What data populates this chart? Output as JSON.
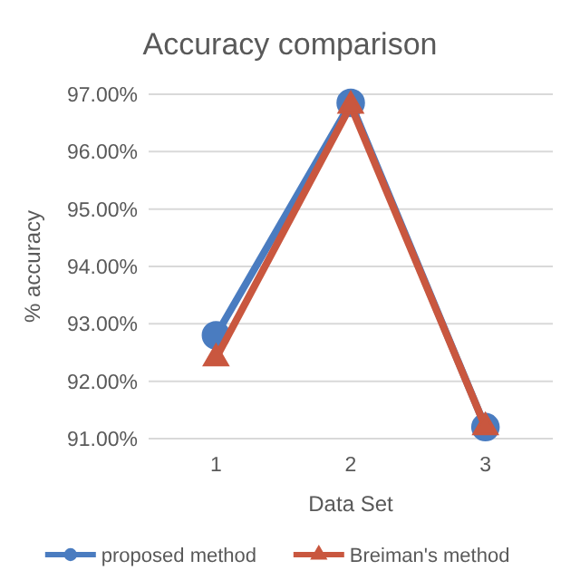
{
  "chart_data": {
    "type": "line",
    "title": "Accuracy comparison",
    "xlabel": "Data Set",
    "ylabel": "% accuracy",
    "categories": [
      "1",
      "2",
      "3"
    ],
    "series": [
      {
        "name": "proposed method",
        "color": "#4a7cc0",
        "marker": "circle",
        "values": [
          92.8,
          96.85,
          91.2
        ]
      },
      {
        "name": "Breiman's method",
        "color": "#c9573f",
        "marker": "triangle",
        "values": [
          92.4,
          96.8,
          91.2
        ]
      }
    ],
    "ylim": [
      91,
      97
    ],
    "yticks": [
      {
        "value": 91,
        "label": "91.00%"
      },
      {
        "value": 92,
        "label": "92.00%"
      },
      {
        "value": 93,
        "label": "93.00%"
      },
      {
        "value": 94,
        "label": "94.00%"
      },
      {
        "value": 95,
        "label": "95.00%"
      },
      {
        "value": 96,
        "label": "96.00%"
      },
      {
        "value": 97,
        "label": "97.00%"
      }
    ],
    "grid": "y",
    "legend": "bottom",
    "line_style": "solid"
  }
}
